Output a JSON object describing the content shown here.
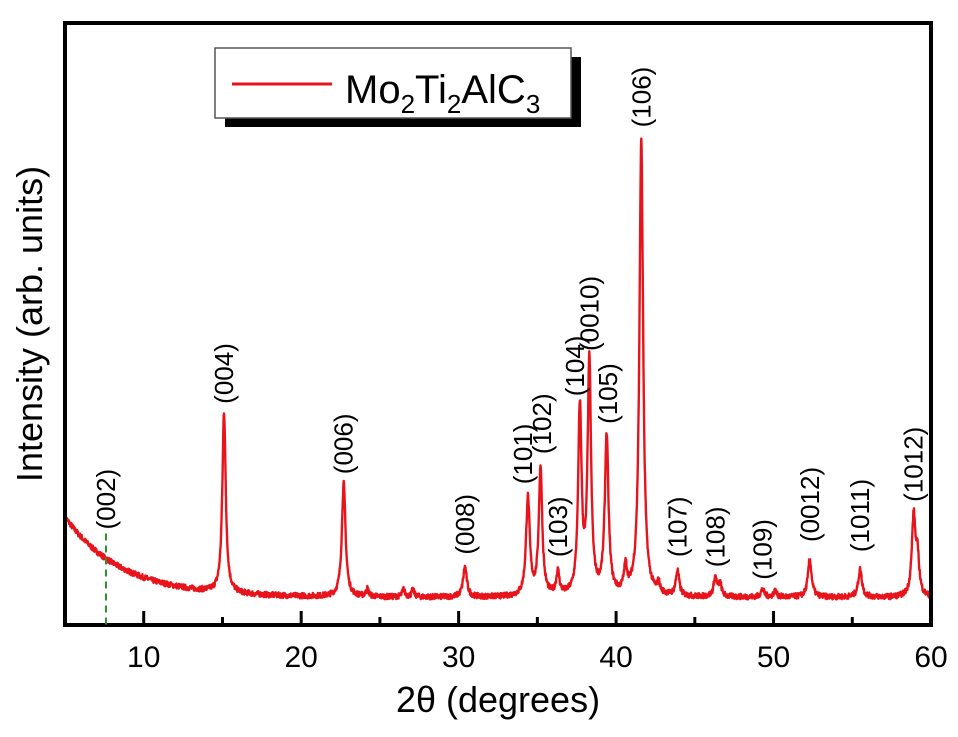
{
  "chart_data": {
    "type": "line",
    "title": "",
    "xlabel": "2θ (degrees)",
    "ylabel": "Intensity (arb. units)",
    "xlim": [
      5,
      60
    ],
    "ylim": [
      0,
      100
    ],
    "xticks": [
      10,
      20,
      30,
      40,
      50,
      60
    ],
    "xticks_minor": [
      15,
      25,
      35,
      45,
      55
    ],
    "grid": false,
    "legend": {
      "placement": "top-left",
      "entries": [
        {
          "name": "Mo2Ti2AlC3",
          "base": [
            "Mo",
            "Ti",
            "AlC"
          ],
          "subs": [
            "2",
            "2",
            "3"
          ],
          "color": "#e8141b"
        }
      ]
    },
    "series": [
      {
        "name": "Mo2Ti2AlC3",
        "color": "#e8141b",
        "background": {
          "start": 21.5,
          "end": 5.5,
          "decay": 0.28
        },
        "peaks": [
          {
            "x": 15.1,
            "y": 36.0,
            "w": 0.13
          },
          {
            "x": 22.7,
            "y": 22.5,
            "w": 0.14
          },
          {
            "x": 24.2,
            "y": 1.5,
            "w": 0.1
          },
          {
            "x": 26.5,
            "y": 1.5,
            "w": 0.1
          },
          {
            "x": 27.1,
            "y": 1.4,
            "w": 0.1
          },
          {
            "x": 30.4,
            "y": 6.0,
            "w": 0.14
          },
          {
            "x": 34.4,
            "y": 19.5,
            "w": 0.14
          },
          {
            "x": 35.2,
            "y": 25.5,
            "w": 0.13
          },
          {
            "x": 36.3,
            "y": 4.5,
            "w": 0.12
          },
          {
            "x": 37.7,
            "y": 37.0,
            "w": 0.13
          },
          {
            "x": 38.3,
            "y": 46.0,
            "w": 0.13
          },
          {
            "x": 39.4,
            "y": 31.5,
            "w": 0.14
          },
          {
            "x": 40.6,
            "y": 5.0,
            "w": 0.12
          },
          {
            "x": 41.6,
            "y": 91.0,
            "w": 0.14
          },
          {
            "x": 42.7,
            "y": 2.0,
            "w": 0.1
          },
          {
            "x": 43.9,
            "y": 5.0,
            "w": 0.13
          },
          {
            "x": 46.3,
            "y": 3.8,
            "w": 0.12
          },
          {
            "x": 46.6,
            "y": 2.5,
            "w": 0.12
          },
          {
            "x": 49.3,
            "y": 1.5,
            "w": 0.13
          },
          {
            "x": 50.1,
            "y": 1.2,
            "w": 0.12
          },
          {
            "x": 52.3,
            "y": 7.5,
            "w": 0.14
          },
          {
            "x": 55.5,
            "y": 5.5,
            "w": 0.14
          },
          {
            "x": 58.9,
            "y": 16.0,
            "w": 0.14
          },
          {
            "x": 59.15,
            "y": 7.0,
            "w": 0.12
          }
        ]
      }
    ],
    "annotations": [
      {
        "label": "(002)",
        "x": 7.6,
        "y": 19.0,
        "dashed_line": true,
        "line_color": "#2e8b2e"
      },
      {
        "label": "(004)",
        "x": 15.1,
        "y": 44.0
      },
      {
        "label": "(006)",
        "x": 22.7,
        "y": 30.0
      },
      {
        "label": "(008)",
        "x": 30.4,
        "y": 14.0
      },
      {
        "label": "(101)",
        "x": 34.1,
        "y": 28.0
      },
      {
        "label": "(102)",
        "x": 35.3,
        "y": 34.0
      },
      {
        "label": "(103)",
        "x": 36.3,
        "y": 13.5
      },
      {
        "label": "(104)",
        "x": 37.4,
        "y": 45.5
      },
      {
        "label": "(0010)",
        "x": 38.3,
        "y": 54.5
      },
      {
        "label": "(105)",
        "x": 39.5,
        "y": 40.0
      },
      {
        "label": "(106)",
        "x": 41.6,
        "y": 99.0
      },
      {
        "label": "(107)",
        "x": 43.9,
        "y": 13.5
      },
      {
        "label": "(108)",
        "x": 46.3,
        "y": 11.5
      },
      {
        "label": "(109)",
        "x": 49.3,
        "y": 9.0
      },
      {
        "label": "(0012)",
        "x": 52.3,
        "y": 16.5
      },
      {
        "label": "(1011)",
        "x": 55.5,
        "y": 14.5
      },
      {
        "label": "(1012)",
        "x": 58.9,
        "y": 24.5
      }
    ]
  }
}
